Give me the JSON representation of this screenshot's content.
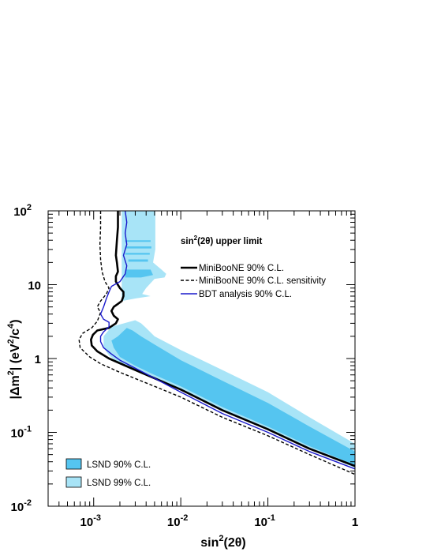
{
  "chart_data": {
    "type": "line",
    "xlabel_base": "sin",
    "xlabel_sup": "2",
    "xlabel_rest": "(2θ)",
    "ylabel_parts": [
      "|Δm",
      "2",
      "|  (eV",
      "2",
      "/c",
      "4",
      ")"
    ],
    "xscale": "log",
    "yscale": "log",
    "xlim": [
      0.0003,
      1
    ],
    "ylim": [
      0.01,
      100
    ],
    "x_ticks": [
      {
        "value": 0.001,
        "base": "10",
        "exp": "-3"
      },
      {
        "value": 0.01,
        "base": "10",
        "exp": "-2"
      },
      {
        "value": 0.1,
        "base": "10",
        "exp": "-1"
      },
      {
        "value": 1,
        "base": "1",
        "exp": ""
      }
    ],
    "y_ticks": [
      {
        "value": 0.01,
        "base": "10",
        "exp": "-2"
      },
      {
        "value": 0.1,
        "base": "10",
        "exp": "-1"
      },
      {
        "value": 1,
        "base": "1",
        "exp": ""
      },
      {
        "value": 10,
        "base": "10",
        "exp": ""
      },
      {
        "value": 100,
        "base": "10",
        "exp": "2"
      }
    ],
    "legend_top_title_base": "sin",
    "legend_top_title_sup": "2",
    "legend_top_title_rest": "(2θ) upper limit",
    "series": [
      {
        "name": "MiniBooNE 90% C.L.",
        "color": "#000000",
        "style": "solid",
        "width": 2.6,
        "points": [
          [
            0.0019,
            100
          ],
          [
            0.0019,
            60
          ],
          [
            0.00185,
            40
          ],
          [
            0.0018,
            25
          ],
          [
            0.00185,
            20
          ],
          [
            0.0019,
            15
          ],
          [
            0.0018,
            13
          ],
          [
            0.0018,
            11
          ],
          [
            0.002,
            9
          ],
          [
            0.0022,
            8
          ],
          [
            0.0022,
            7
          ],
          [
            0.0021,
            6
          ],
          [
            0.0019,
            5.5
          ],
          [
            0.0017,
            5
          ],
          [
            0.0016,
            4.4
          ],
          [
            0.0017,
            3.8
          ],
          [
            0.0019,
            3.4
          ],
          [
            0.0018,
            3.0
          ],
          [
            0.0015,
            2.6
          ],
          [
            0.0011,
            2.4
          ],
          [
            0.00098,
            2.1
          ],
          [
            0.00093,
            1.8
          ],
          [
            0.00095,
            1.5
          ],
          [
            0.0011,
            1.25
          ],
          [
            0.0015,
            1.0
          ],
          [
            0.003,
            0.7
          ],
          [
            0.01,
            0.38
          ],
          [
            0.03,
            0.2
          ],
          [
            0.1,
            0.11
          ],
          [
            0.3,
            0.06
          ],
          [
            1,
            0.035
          ]
        ]
      },
      {
        "name": "MiniBooNE 90% C.L. sensitivity",
        "color": "#000000",
        "style": "dashed",
        "width": 1.4,
        "points": [
          [
            0.0012,
            100
          ],
          [
            0.0012,
            60
          ],
          [
            0.00118,
            35
          ],
          [
            0.0012,
            22
          ],
          [
            0.00125,
            15
          ],
          [
            0.00135,
            11
          ],
          [
            0.0015,
            9
          ],
          [
            0.0014,
            7.5
          ],
          [
            0.0012,
            6
          ],
          [
            0.0011,
            5
          ],
          [
            0.0012,
            4.2
          ],
          [
            0.0011,
            3.2
          ],
          [
            0.00095,
            2.6
          ],
          [
            0.00075,
            2.2
          ],
          [
            0.00068,
            1.8
          ],
          [
            0.0007,
            1.4
          ],
          [
            0.0009,
            1.05
          ],
          [
            0.0012,
            0.85
          ],
          [
            0.002,
            0.65
          ],
          [
            0.005,
            0.42
          ],
          [
            0.01,
            0.3
          ],
          [
            0.03,
            0.16
          ],
          [
            0.1,
            0.09
          ],
          [
            0.3,
            0.05
          ],
          [
            1,
            0.027
          ]
        ]
      },
      {
        "name": "BDT analysis 90% C.L.",
        "color": "#1a1acc",
        "style": "solid",
        "width": 1.4,
        "points": [
          [
            0.0023,
            100
          ],
          [
            0.0024,
            70
          ],
          [
            0.0023,
            50
          ],
          [
            0.0024,
            35
          ],
          [
            0.0022,
            25
          ],
          [
            0.0024,
            18
          ],
          [
            0.0023,
            14
          ],
          [
            0.002,
            11
          ],
          [
            0.0016,
            9.5
          ],
          [
            0.0015,
            8
          ],
          [
            0.0014,
            6.5
          ],
          [
            0.0013,
            5
          ],
          [
            0.0012,
            4
          ],
          [
            0.0013,
            3.4
          ],
          [
            0.0015,
            3.1
          ],
          [
            0.0015,
            2.7
          ],
          [
            0.0013,
            2.3
          ],
          [
            0.0012,
            2.0
          ],
          [
            0.0012,
            1.7
          ],
          [
            0.0013,
            1.4
          ],
          [
            0.0016,
            1.15
          ],
          [
            0.002,
            0.95
          ],
          [
            0.004,
            0.62
          ],
          [
            0.01,
            0.35
          ],
          [
            0.03,
            0.18
          ],
          [
            0.1,
            0.1
          ],
          [
            0.3,
            0.055
          ],
          [
            1,
            0.032
          ]
        ]
      }
    ],
    "regions": [
      {
        "name": "LSND 99% C.L.",
        "color": "#a8e4f7",
        "points": [
          [
            0.0016,
            2.7
          ],
          [
            0.003,
            3.3
          ],
          [
            0.0035,
            3.0
          ],
          [
            0.004,
            2.6
          ],
          [
            0.005,
            2.0
          ],
          [
            0.01,
            1.3
          ],
          [
            0.03,
            0.7
          ],
          [
            0.1,
            0.35
          ],
          [
            0.3,
            0.16
          ],
          [
            1,
            0.07
          ],
          [
            1,
            0.033
          ],
          [
            0.3,
            0.06
          ],
          [
            0.1,
            0.11
          ],
          [
            0.03,
            0.2
          ],
          [
            0.01,
            0.38
          ],
          [
            0.005,
            0.55
          ],
          [
            0.002,
            0.85
          ],
          [
            0.0015,
            1.1
          ],
          [
            0.0013,
            1.4
          ],
          [
            0.0013,
            2.0
          ]
        ]
      },
      {
        "name": "LSND 99% C.L.",
        "color": "#a8e4f7",
        "points": [
          [
            0.0021,
            100
          ],
          [
            0.0051,
            100
          ],
          [
            0.0051,
            30
          ],
          [
            0.0048,
            20
          ],
          [
            0.006,
            16
          ],
          [
            0.0068,
            14
          ],
          [
            0.0065,
            12.5
          ],
          [
            0.005,
            12
          ],
          [
            0.004,
            9
          ],
          [
            0.0036,
            7.5
          ],
          [
            0.0045,
            7
          ],
          [
            0.003,
            6.5
          ],
          [
            0.0021,
            6
          ],
          [
            0.0021,
            9
          ],
          [
            0.0021,
            12
          ],
          [
            0.0021,
            16
          ],
          [
            0.0021,
            50
          ]
        ]
      },
      {
        "name": "LSND 90% C.L.",
        "color": "#55c5f0",
        "points": [
          [
            0.0019,
            2.0
          ],
          [
            0.0024,
            2.6
          ],
          [
            0.0028,
            2.4
          ],
          [
            0.0035,
            2.0
          ],
          [
            0.005,
            1.55
          ],
          [
            0.01,
            0.95
          ],
          [
            0.03,
            0.5
          ],
          [
            0.1,
            0.25
          ],
          [
            0.3,
            0.12
          ],
          [
            1,
            0.055
          ],
          [
            1,
            0.036
          ],
          [
            0.3,
            0.065
          ],
          [
            0.1,
            0.12
          ],
          [
            0.03,
            0.22
          ],
          [
            0.01,
            0.42
          ],
          [
            0.005,
            0.6
          ],
          [
            0.003,
            0.8
          ],
          [
            0.002,
            1.05
          ],
          [
            0.0017,
            1.4
          ],
          [
            0.0016,
            1.75
          ]
        ]
      },
      {
        "name": "LSND 90% C.L.",
        "color": "#55c5f0",
        "points": [
          [
            0.0023,
            16
          ],
          [
            0.0045,
            16
          ],
          [
            0.0048,
            13.5
          ],
          [
            0.0035,
            12.5
          ],
          [
            0.0023,
            12.5
          ]
        ]
      },
      {
        "name": "LSND 90% C.L.",
        "color": "#55c5f0",
        "points": [
          [
            0.0023,
            40
          ],
          [
            0.0045,
            40
          ],
          [
            0.0045,
            38
          ],
          [
            0.0023,
            38
          ]
        ]
      },
      {
        "name": "LSND 90% C.L.",
        "color": "#55c5f0",
        "points": [
          [
            0.0023,
            33
          ],
          [
            0.0046,
            33
          ],
          [
            0.0046,
            31
          ],
          [
            0.0023,
            31
          ]
        ]
      },
      {
        "name": "LSND 90% C.L.",
        "color": "#55c5f0",
        "points": [
          [
            0.0023,
            27
          ],
          [
            0.0044,
            27
          ],
          [
            0.0044,
            25.5
          ],
          [
            0.0023,
            25.5
          ]
        ]
      },
      {
        "name": "LSND 90% C.L.",
        "color": "#55c5f0",
        "points": [
          [
            0.0025,
            22
          ],
          [
            0.0042,
            22
          ],
          [
            0.0042,
            20.5
          ],
          [
            0.0025,
            20.5
          ]
        ]
      }
    ],
    "legend_bottom": [
      {
        "label": "LSND 90% C.L.",
        "color": "#55c5f0"
      },
      {
        "label": "LSND 99% C.L.",
        "color": "#a8e4f7"
      }
    ]
  }
}
